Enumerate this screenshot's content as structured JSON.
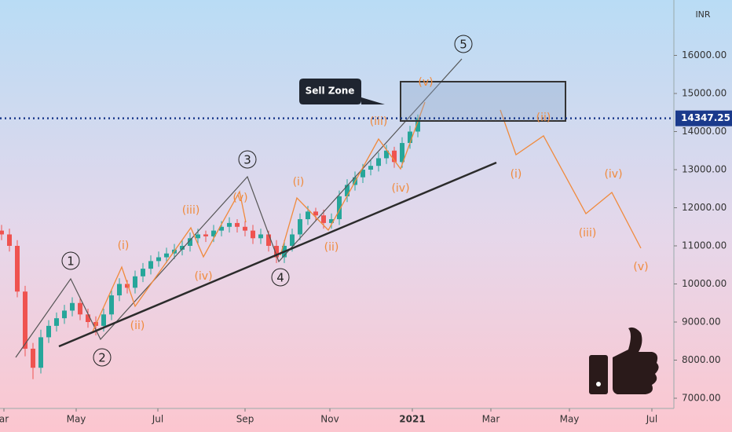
{
  "chart_data": {
    "type": "candlestick",
    "currency": "INR",
    "open": [
      11400,
      11300,
      11000,
      9800,
      8300,
      7800,
      8600,
      8900,
      9100,
      9300,
      9500,
      9200,
      9000,
      8900,
      9200,
      9700,
      10000,
      9900,
      10200,
      10400,
      10600,
      10700,
      10800,
      10900,
      11000,
      11200,
      11300,
      11250,
      11400,
      11500,
      11600,
      11500,
      11400,
      11200,
      11300,
      11000,
      10700,
      11000,
      11300,
      11700,
      11900,
      11800,
      11600,
      11700,
      12300,
      12600,
      12800,
      13000,
      13100,
      13300,
      13500,
      13200,
      13700,
      14000
    ],
    "high": [
      11550,
      11450,
      11150,
      9950,
      8450,
      8800,
      9050,
      9250,
      9450,
      9650,
      9650,
      9350,
      9150,
      9350,
      9850,
      10150,
      10100,
      10350,
      10550,
      10750,
      10850,
      10950,
      11050,
      11150,
      11350,
      11450,
      11400,
      11550,
      11650,
      11750,
      11700,
      11650,
      11550,
      11450,
      11400,
      11150,
      11150,
      11450,
      11850,
      12050,
      12000,
      11950,
      11850,
      12450,
      12750,
      12950,
      13150,
      13250,
      13450,
      13650,
      13600,
      13850,
      14150,
      14450
    ],
    "low": [
      11150,
      10850,
      9650,
      8100,
      7500,
      7650,
      8450,
      8750,
      8950,
      9150,
      9050,
      8850,
      8650,
      8750,
      9050,
      9550,
      9750,
      9750,
      10050,
      10250,
      10450,
      10550,
      10650,
      10750,
      10850,
      11050,
      11100,
      11100,
      11250,
      11350,
      11350,
      11250,
      11050,
      11050,
      10850,
      10550,
      10550,
      10850,
      11150,
      11550,
      11650,
      11450,
      11450,
      11550,
      12150,
      12450,
      12650,
      12850,
      12950,
      13150,
      13050,
      13050,
      13550,
      13850
    ],
    "close": [
      11300,
      11000,
      9800,
      8300,
      7800,
      8600,
      8900,
      9100,
      9300,
      9500,
      9200,
      9000,
      8900,
      9200,
      9700,
      10000,
      9900,
      10200,
      10400,
      10600,
      10700,
      10800,
      10900,
      11000,
      11200,
      11300,
      11250,
      11400,
      11500,
      11600,
      11500,
      11400,
      11200,
      11300,
      11000,
      10700,
      11000,
      11300,
      11700,
      11900,
      11800,
      11600,
      11700,
      12300,
      12600,
      12800,
      13000,
      13100,
      13300,
      13500,
      13200,
      13700,
      14000,
      14350
    ],
    "up_color": "#26a69a",
    "down_color": "#ef5350",
    "xlim": [
      -0.2,
      85.6
    ],
    "ylim": [
      6732,
      17454
    ],
    "xticks": [
      {
        "value": 0.3,
        "label": "ar"
      },
      {
        "value": 9.5,
        "label": "May"
      },
      {
        "value": 19.9,
        "label": "Jul"
      },
      {
        "value": 31,
        "label": "Sep"
      },
      {
        "value": 41.8,
        "label": "Nov"
      },
      {
        "value": 52.3,
        "label": "2021"
      },
      {
        "value": 62.3,
        "label": "Mar"
      },
      {
        "value": 72.3,
        "label": "May"
      },
      {
        "value": 82.8,
        "label": "Jul"
      }
    ],
    "yticks": [
      {
        "value": 7000,
        "label": "7000.00"
      },
      {
        "value": 8000,
        "label": "8000.00"
      },
      {
        "value": 9000,
        "label": "9000.00"
      },
      {
        "value": 10000,
        "label": "10000.00"
      },
      {
        "value": 11000,
        "label": "11000.00"
      },
      {
        "value": 12000,
        "label": "12000.00"
      },
      {
        "value": 13000,
        "label": "13000.00"
      },
      {
        "value": 14000,
        "label": "14000.00"
      },
      {
        "value": 15000,
        "label": "15000.00"
      },
      {
        "value": 16000,
        "label": "16000.00"
      }
    ],
    "last_price": 14347.25,
    "annotations": {
      "sell_zone": "Sell Zone",
      "waves": [
        "1",
        "2",
        "3",
        "4",
        "5"
      ],
      "subwaves": [
        "(i)",
        "(ii)",
        "(iii)",
        "(iv)",
        "(v)",
        "(i)",
        "(ii)",
        "(iii)",
        "(iv)",
        "(v)",
        "(i)",
        "(ii)",
        "(iii)",
        "(iv)",
        "(v)"
      ]
    }
  }
}
